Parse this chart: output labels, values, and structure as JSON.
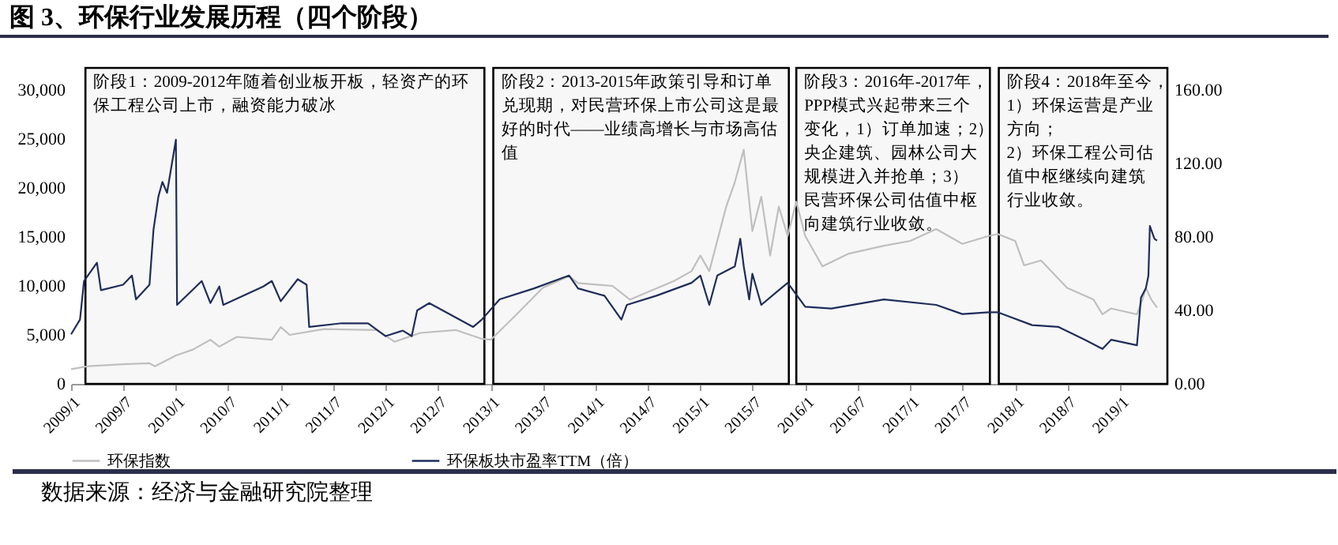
{
  "chart_data": {
    "type": "line",
    "title": "图 3、环保行业发展历程（四个阶段）",
    "annotations": [
      "数据来源：经济与金融研究院整理"
    ],
    "legend": "bottom",
    "xlim": [
      "2009-01-01",
      "2019-06-15"
    ],
    "xticks": [
      {
        "value": "2009-01",
        "label": "2009/1"
      },
      {
        "value": "2009-07",
        "label": "2009/7"
      },
      {
        "value": "2010-01",
        "label": "2010/1"
      },
      {
        "value": "2010-07",
        "label": "2010/7"
      },
      {
        "value": "2011-01",
        "label": "2011/1"
      },
      {
        "value": "2011-07",
        "label": "2011/7"
      },
      {
        "value": "2012-01",
        "label": "2012/1"
      },
      {
        "value": "2012-07",
        "label": "2012/7"
      },
      {
        "value": "2013-01",
        "label": "2013/1"
      },
      {
        "value": "2013-07",
        "label": "2013/7"
      },
      {
        "value": "2014-01",
        "label": "2014/1"
      },
      {
        "value": "2014-07",
        "label": "2014/7"
      },
      {
        "value": "2015-01",
        "label": "2015/1"
      },
      {
        "value": "2015-07",
        "label": "2015/7"
      },
      {
        "value": "2016-01",
        "label": "2016/1"
      },
      {
        "value": "2016-07",
        "label": "2016/7"
      },
      {
        "value": "2017-01",
        "label": "2017/1"
      },
      {
        "value": "2017-07",
        "label": "2017/7"
      },
      {
        "value": "2018-01",
        "label": "2018/1"
      },
      {
        "value": "2018-07",
        "label": "2018/7"
      },
      {
        "value": "2019-01",
        "label": "2019/1"
      }
    ],
    "ylim": [
      0,
      30000
    ],
    "yticks": [
      {
        "value": 0,
        "label": "0"
      },
      {
        "value": 5000,
        "label": "5,000"
      },
      {
        "value": 10000,
        "label": "10,000"
      },
      {
        "value": 15000,
        "label": "15,000"
      },
      {
        "value": 20000,
        "label": "20,000"
      },
      {
        "value": 25000,
        "label": "25,000"
      },
      {
        "value": 30000,
        "label": "30,000"
      }
    ],
    "y2lim": [
      0,
      160
    ],
    "y2ticks": [
      {
        "value": 0,
        "label": "0.00"
      },
      {
        "value": 40,
        "label": "40.00"
      },
      {
        "value": 80,
        "label": "80.00"
      },
      {
        "value": 120,
        "label": "120.00"
      },
      {
        "value": 160,
        "label": "160.00"
      }
    ],
    "bands": [
      {
        "axis": "x",
        "from": "2009-02-20",
        "to": "2012-12-10",
        "label": "阶段1：2009-2012年随着创业板开板，轻资产的环保工程公司上市，融资能力破冰",
        "color": "#000000"
      },
      {
        "axis": "x",
        "from": "2013-01-10",
        "to": "2015-11-05",
        "label": "阶段2：2013-2015年政策引导和订单兑现期，对民营环保上市公司这是最好的时代——业绩高增长与市场高估值",
        "color": "#000000"
      },
      {
        "axis": "x",
        "from": "2015-12-01",
        "to": "2017-10-05",
        "label": "阶段3：2016年-2017年，PPP模式兴起带来三个变化，1）订单加速；2）央企建筑、园林公司大规模进入并抢单；3）民营环保公司估值中枢向建筑行业收敛。",
        "color": "#000000"
      },
      {
        "axis": "x",
        "from": "2017-11-05",
        "to": "2019-06-15",
        "label": "阶段4：2018年至今，\n1）环保运营是产业方向；\n2）环保工程公司估值中枢继续向建筑行业收敛。",
        "color": "#000000"
      }
    ],
    "series": [
      {
        "name": "环保指数",
        "color": "#bfbfbf",
        "x": [
          "2009-01",
          "2009-03",
          "2009-07",
          "2009-10",
          "2009-10-20",
          "2010-01",
          "2010-03",
          "2010-05",
          "2010-06",
          "2010-08",
          "2010-12",
          "2011-01",
          "2011-02",
          "2011-06",
          "2011-12",
          "2012-02",
          "2012-05",
          "2012-09",
          "2012-12",
          "2013-01",
          "2013-04",
          "2013-07",
          "2013-10",
          "2013-11",
          "2014-03",
          "2014-05",
          "2014-10",
          "2014-12",
          "2015-01",
          "2015-02",
          "2015-04",
          "2015-05",
          "2015-06",
          "2015-07",
          "2015-08",
          "2015-09",
          "2015-10",
          "2015-11",
          "2015-12",
          "2016-01",
          "2016-03",
          "2016-06",
          "2016-10",
          "2017-01",
          "2017-04",
          "2017-07",
          "2017-10",
          "2017-11",
          "2018-01",
          "2018-02",
          "2018-04",
          "2018-07",
          "2018-10",
          "2018-11",
          "2018-12",
          "2019-03",
          "2019-03-20",
          "2019-04",
          "2019-04-20",
          "2019-05-10"
        ],
        "values": [
          1500,
          1800,
          2000,
          2100,
          1800,
          2900,
          3500,
          4500,
          3800,
          4800,
          4500,
          5800,
          5000,
          5600,
          5500,
          4300,
          5200,
          5500,
          4600,
          4500,
          7100,
          9800,
          11000,
          10300,
          10000,
          8600,
          10500,
          11500,
          13100,
          11500,
          18100,
          20600,
          23900,
          15600,
          19100,
          13100,
          18100,
          15100,
          18600,
          15100,
          12000,
          13300,
          14100,
          14600,
          15800,
          14300,
          15100,
          15300,
          14600,
          12100,
          12600,
          9800,
          8600,
          7100,
          7700,
          7100,
          8600,
          9800,
          8600,
          7800
        ]
      },
      {
        "name": "环保板块市盈率TTM（倍）",
        "color": "#1f2d5a",
        "axis": "y2",
        "x": [
          "2009-01",
          "2009-02",
          "2009-02-15",
          "2009-04",
          "2009-04-15",
          "2009-07",
          "2009-08",
          "2009-08-15",
          "2009-10",
          "2009-10-15",
          "2009-11",
          "2009-11-15",
          "2009-12",
          "2010-01",
          "2010-01-05",
          "2010-04",
          "2010-05",
          "2010-06",
          "2010-06-15",
          "2010-11",
          "2010-12",
          "2011-01",
          "2011-03",
          "2011-04",
          "2011-04-10",
          "2011-08",
          "2011-11",
          "2012-01",
          "2012-03",
          "2012-04",
          "2012-04-20",
          "2012-06",
          "2012-11",
          "2012-12",
          "2013-02",
          "2013-06",
          "2013-10",
          "2013-11",
          "2014-02",
          "2014-04",
          "2014-04-20",
          "2014-08",
          "2014-12",
          "2015-01",
          "2015-02",
          "2015-03",
          "2015-05",
          "2015-05-20",
          "2015-06",
          "2015-06-20",
          "2015-07",
          "2015-08",
          "2015-10",
          "2015-11",
          "2016-01",
          "2016-04",
          "2016-10",
          "2017-04",
          "2017-07",
          "2017-10",
          "2017-11",
          "2018-03",
          "2018-06",
          "2018-09",
          "2018-11",
          "2018-12",
          "2019-03",
          "2019-03-15",
          "2019-04",
          "2019-04-10",
          "2019-04-15",
          "2019-05",
          "2019-05-10"
        ],
        "values": [
          27,
          35,
          56,
          66,
          51,
          54,
          59,
          46,
          54,
          84,
          102,
          110,
          104,
          133,
          43,
          56,
          44,
          53,
          43,
          53,
          56,
          45,
          57,
          54,
          31,
          33,
          33,
          26,
          29,
          26,
          40,
          44,
          31,
          35,
          46,
          52,
          59,
          52,
          48,
          35,
          43,
          48,
          55,
          59,
          43,
          59,
          64,
          79,
          64,
          46,
          60,
          43,
          51,
          55,
          42,
          41,
          46,
          43,
          38,
          39,
          39,
          32,
          31,
          24,
          19,
          24,
          21,
          47,
          52,
          59,
          86,
          79,
          78
        ]
      }
    ]
  }
}
